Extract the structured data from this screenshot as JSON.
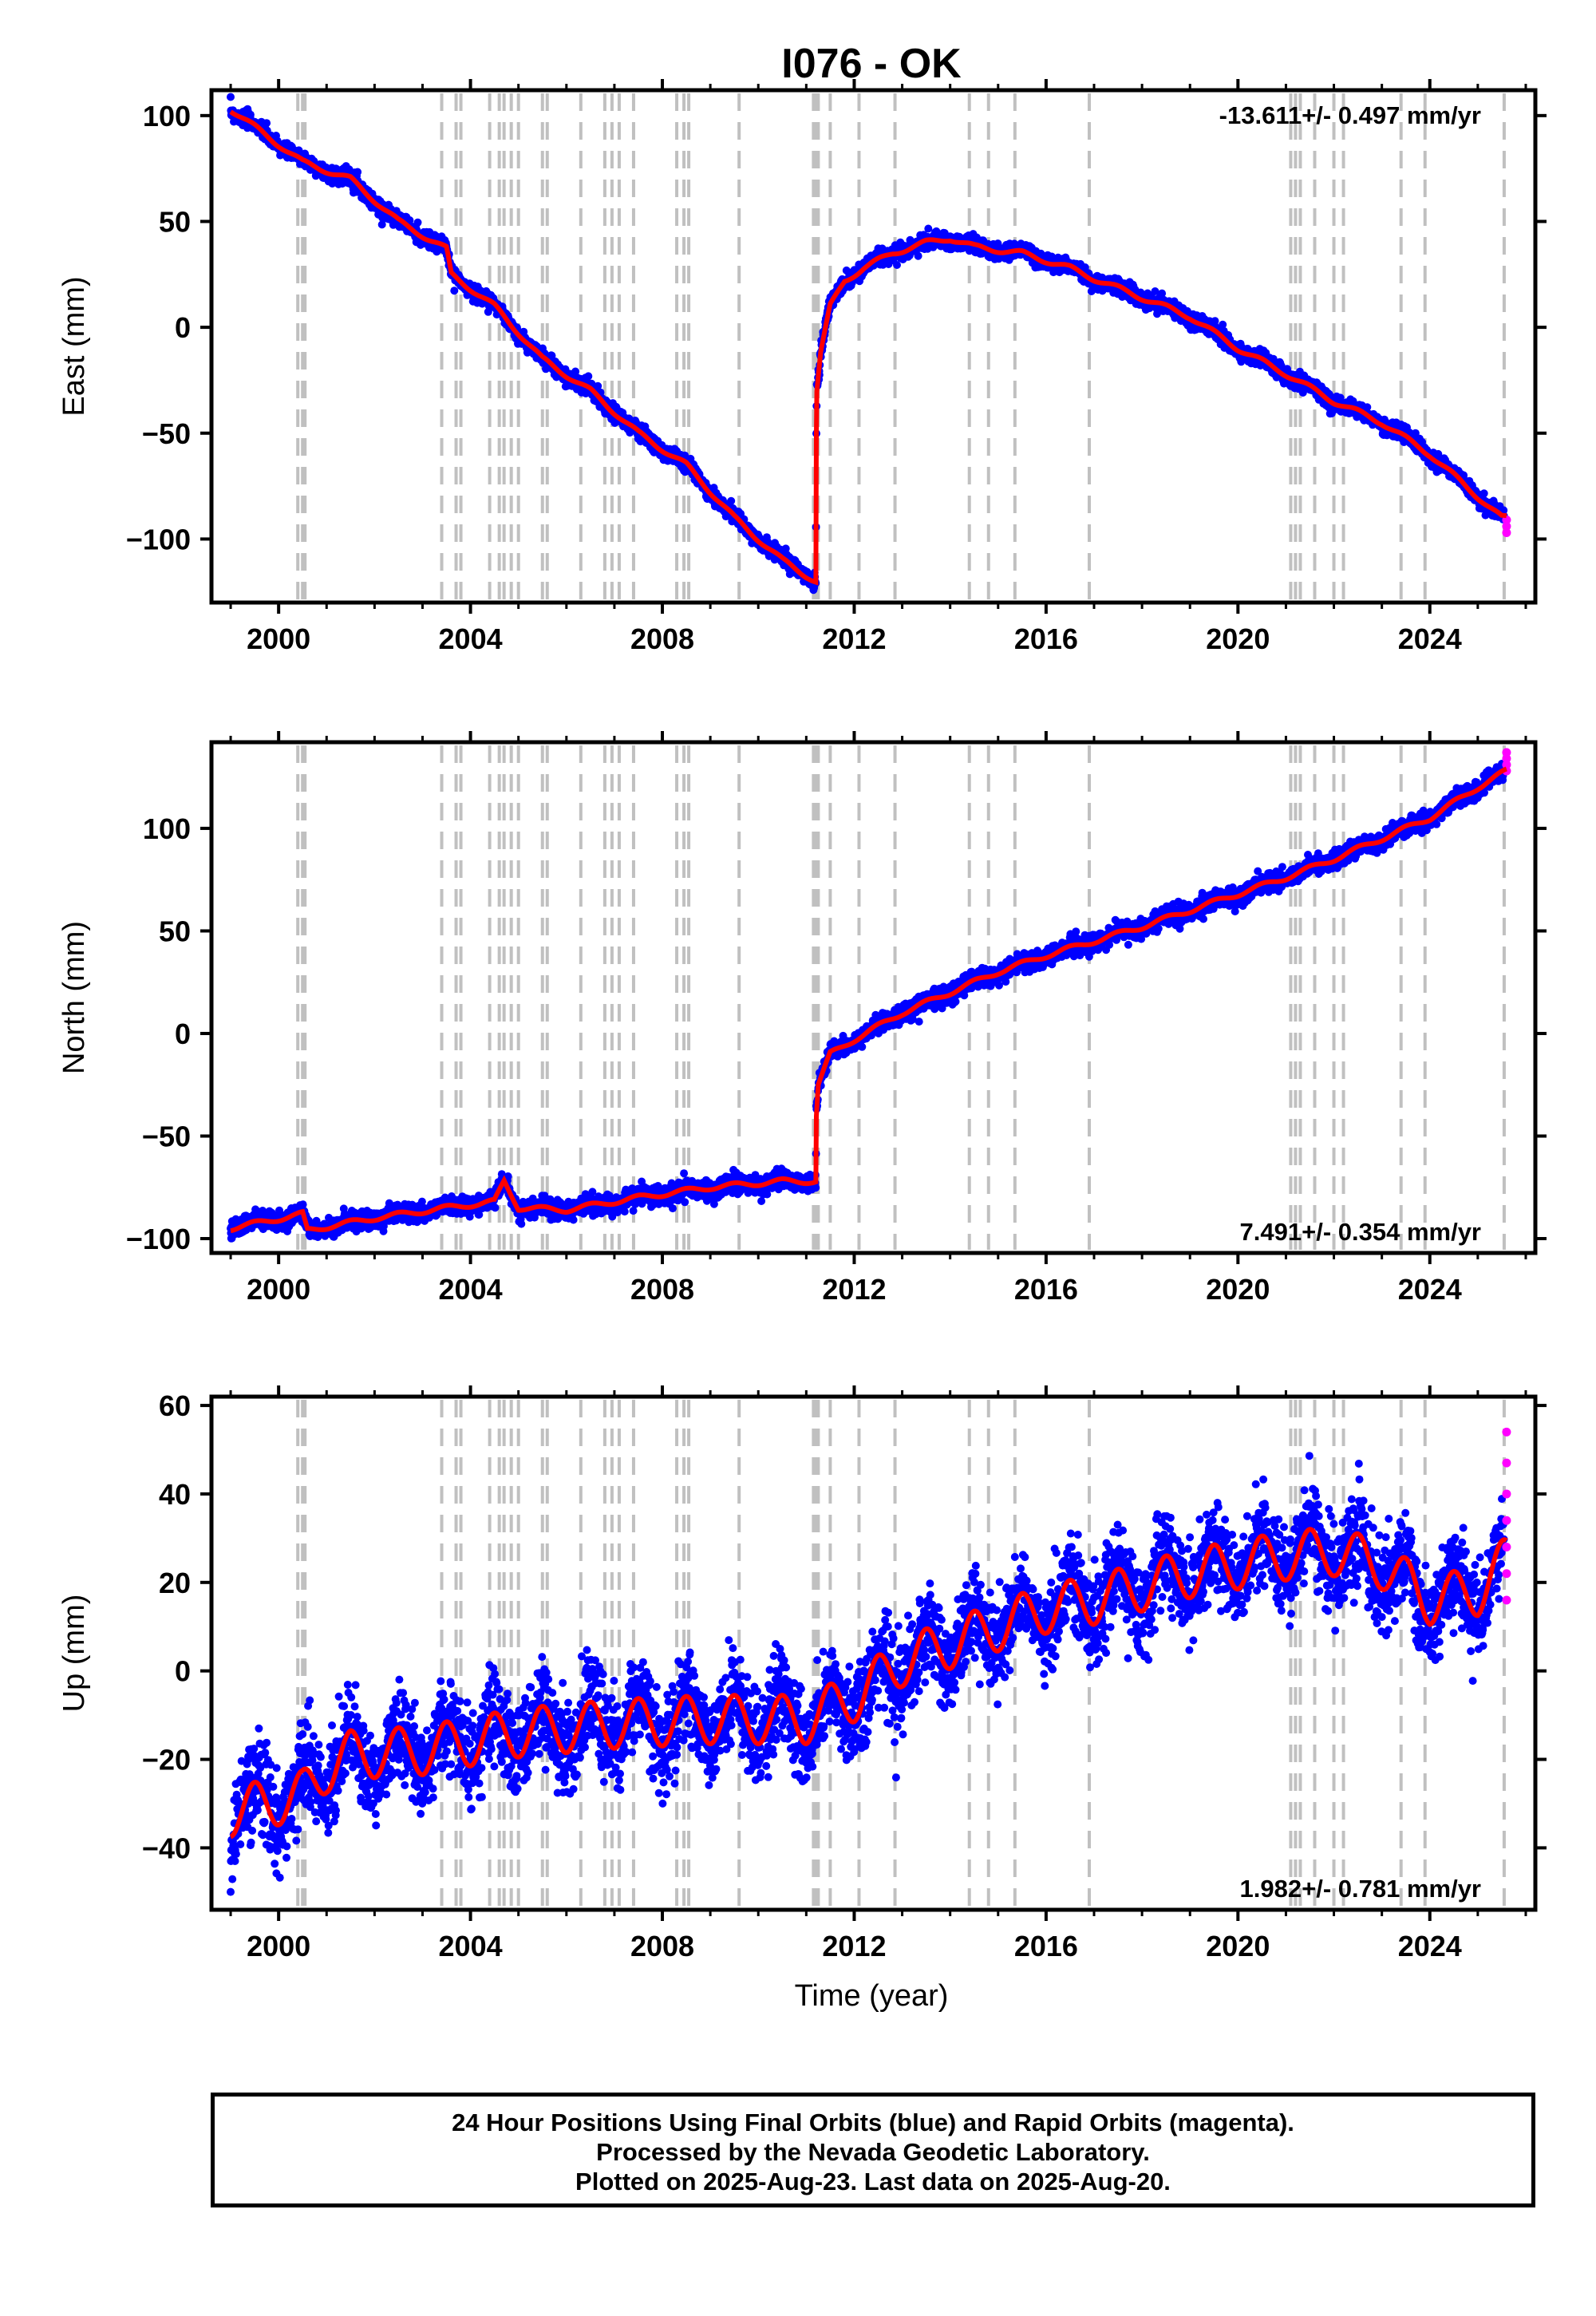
{
  "chart_data": {
    "type": "scatter",
    "title": "I076 - OK",
    "xlabel": "Time (year)",
    "x_ticks": [
      2000,
      2004,
      2008,
      2012,
      2016,
      2020,
      2024
    ],
    "x_range": [
      1998.6,
      2026.2
    ],
    "colors": {
      "final": "#0000ff",
      "rapid": "#ff00ff",
      "model": "#ff0000",
      "event_lines": "#c0c0c0"
    },
    "event_lines": [
      2000.4,
      2000.5,
      2000.55,
      2003.4,
      2003.7,
      2003.8,
      2004.4,
      2004.6,
      2004.7,
      2004.85,
      2005.0,
      2005.5,
      2005.6,
      2006.3,
      2006.8,
      2006.95,
      2007.1,
      2007.4,
      2008.3,
      2008.45,
      2008.55,
      2009.6,
      2011.15,
      2011.2,
      2011.25,
      2011.5,
      2012.1,
      2012.85,
      2014.4,
      2014.8,
      2015.35,
      2016.9,
      2021.1,
      2021.2,
      2021.3,
      2021.6,
      2022.0,
      2022.2,
      2023.4,
      2023.9,
      2025.55
    ],
    "panels": [
      {
        "name": "east",
        "ylabel": "East (mm)",
        "y_ticks": [
          -100,
          -50,
          0,
          50,
          100
        ],
        "ylim": [
          -130,
          112
        ],
        "rate_label": "-13.611+/- 0.497 mm/yr",
        "rate_position": "top-right",
        "scatter": 1.8,
        "seasonal_amp": 1.2,
        "model": [
          [
            1999.0,
            103
          ],
          [
            2000.5,
            78
          ],
          [
            2001.5,
            70
          ],
          [
            2002.5,
            50
          ],
          [
            2003.5,
            37
          ],
          [
            2003.6,
            25
          ],
          [
            2004.5,
            10
          ],
          [
            2005.5,
            -15
          ],
          [
            2006.5,
            -30
          ],
          [
            2007.5,
            -50
          ],
          [
            2008.5,
            -65
          ],
          [
            2009.5,
            -90
          ],
          [
            2010.5,
            -110
          ],
          [
            2011.2,
            -120
          ],
          [
            2011.21,
            -50
          ],
          [
            2011.22,
            -30
          ],
          [
            2011.3,
            -12
          ],
          [
            2011.5,
            10
          ],
          [
            2011.8,
            22
          ],
          [
            2012.2,
            28
          ],
          [
            2012.8,
            35
          ],
          [
            2013.5,
            40
          ],
          [
            2014.0,
            42
          ],
          [
            2014.5,
            38
          ],
          [
            2015.5,
            35
          ],
          [
            2016.5,
            28
          ],
          [
            2017.0,
            23
          ],
          [
            2018.0,
            14
          ],
          [
            2019.0,
            5
          ],
          [
            2020.0,
            -10
          ],
          [
            2021.0,
            -22
          ],
          [
            2022.0,
            -35
          ],
          [
            2023.0,
            -45
          ],
          [
            2024.0,
            -60
          ],
          [
            2025.5,
            -90
          ]
        ],
        "rapid_points": [
          [
            2025.6,
            -91
          ],
          [
            2025.6,
            -94
          ],
          [
            2025.6,
            -97
          ]
        ]
      },
      {
        "name": "north",
        "ylabel": "North (mm)",
        "y_ticks": [
          -100,
          -50,
          0,
          50,
          100
        ],
        "ylim": [
          -107,
          142
        ],
        "rate_label": "7.491+/- 0.354 mm/yr",
        "rate_position": "bottom-right",
        "scatter": 2.2,
        "seasonal_amp": 1.2,
        "model": [
          [
            1999.0,
            -95
          ],
          [
            2000.5,
            -88
          ],
          [
            2000.6,
            -96
          ],
          [
            2002.0,
            -90
          ],
          [
            2003.5,
            -85
          ],
          [
            2004.5,
            -82
          ],
          [
            2004.7,
            -72
          ],
          [
            2005.0,
            -85
          ],
          [
            2006.0,
            -86
          ],
          [
            2007.5,
            -80
          ],
          [
            2009.0,
            -75
          ],
          [
            2010.5,
            -72
          ],
          [
            2011.2,
            -72
          ],
          [
            2011.21,
            -40
          ],
          [
            2011.25,
            -25
          ],
          [
            2011.5,
            -10
          ],
          [
            2012.0,
            -3
          ],
          [
            2013.0,
            10
          ],
          [
            2014.0,
            20
          ],
          [
            2015.0,
            30
          ],
          [
            2016.0,
            38
          ],
          [
            2017.0,
            45
          ],
          [
            2018.0,
            52
          ],
          [
            2019.0,
            60
          ],
          [
            2020.0,
            68
          ],
          [
            2021.0,
            76
          ],
          [
            2022.0,
            85
          ],
          [
            2023.0,
            95
          ],
          [
            2024.0,
            105
          ],
          [
            2025.0,
            120
          ],
          [
            2025.6,
            128
          ]
        ],
        "rapid_points": [
          [
            2025.6,
            128
          ],
          [
            2025.6,
            131
          ],
          [
            2025.6,
            134
          ],
          [
            2025.6,
            137
          ]
        ]
      },
      {
        "name": "up",
        "ylabel": "Up (mm)",
        "y_ticks": [
          -40,
          -20,
          0,
          20,
          40,
          60
        ],
        "ylim": [
          -54,
          62
        ],
        "rate_label": "1.982+/- 0.781 mm/yr",
        "rate_position": "bottom-right",
        "scatter": 5.0,
        "seasonal_amp": 5.5,
        "model": [
          [
            1999.0,
            -32
          ],
          [
            2000.5,
            -28
          ],
          [
            2001.0,
            -22
          ],
          [
            2001.5,
            -19
          ],
          [
            2003.0,
            -18
          ],
          [
            2005.0,
            -14
          ],
          [
            2007.0,
            -12
          ],
          [
            2009.0,
            -11
          ],
          [
            2011.0,
            -11
          ],
          [
            2012.0,
            -6
          ],
          [
            2013.0,
            2
          ],
          [
            2014.0,
            6
          ],
          [
            2015.0,
            10
          ],
          [
            2016.0,
            14
          ],
          [
            2017.0,
            16
          ],
          [
            2018.0,
            19
          ],
          [
            2019.0,
            22
          ],
          [
            2020.0,
            24
          ],
          [
            2021.0,
            26
          ],
          [
            2022.0,
            27
          ],
          [
            2023.0,
            24
          ],
          [
            2023.5,
            20
          ],
          [
            2024.0,
            16
          ],
          [
            2024.5,
            17
          ],
          [
            2025.0,
            18
          ],
          [
            2025.6,
            25
          ]
        ],
        "rapid_points": [
          [
            2025.6,
            16
          ],
          [
            2025.6,
            22
          ],
          [
            2025.6,
            28
          ],
          [
            2025.6,
            34
          ],
          [
            2025.6,
            40
          ],
          [
            2025.6,
            47
          ],
          [
            2025.6,
            54
          ]
        ]
      }
    ]
  },
  "footer": {
    "line1": "24 Hour Positions Using Final Orbits (blue) and Rapid Orbits (magenta).",
    "line2": "Processed by the Nevada Geodetic Laboratory.",
    "line3": "Plotted on 2025-Aug-23. Last data on 2025-Aug-20."
  }
}
